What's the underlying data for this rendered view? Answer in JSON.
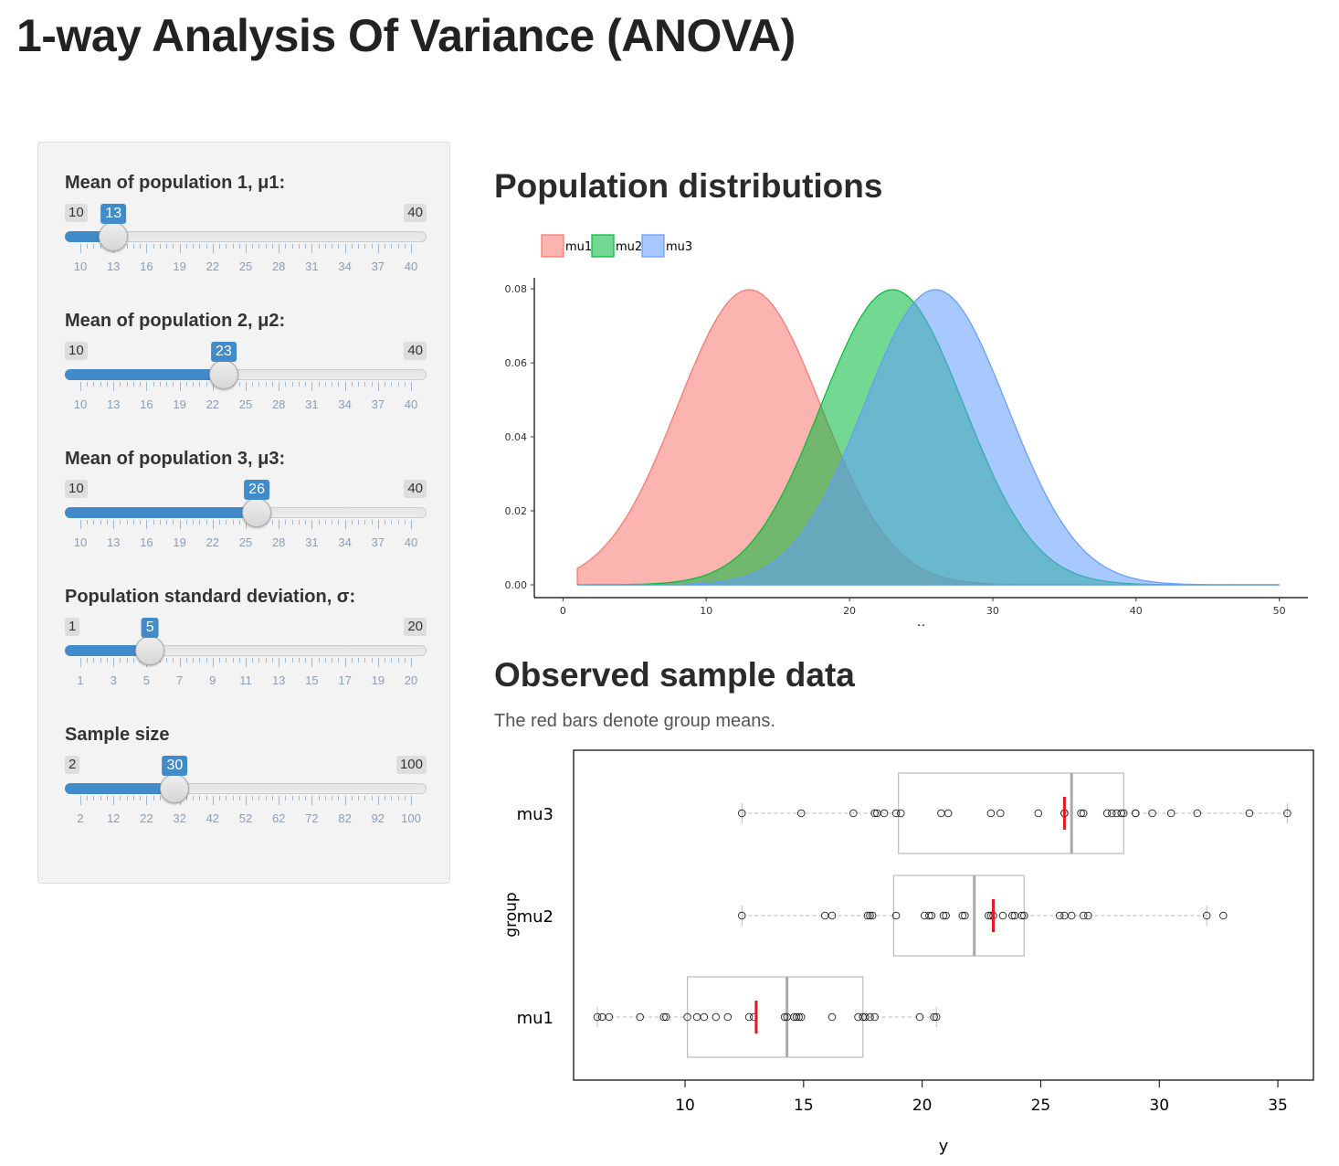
{
  "title": "1-way Analysis Of Variance (ANOVA)",
  "sliders": [
    {
      "id": "mu1",
      "label": "Mean of population 1, μ1:",
      "min": 10,
      "max": 40,
      "value": 13,
      "tick_labels": [
        "10",
        "13",
        "16",
        "19",
        "22",
        "25",
        "28",
        "31",
        "34",
        "37",
        "40"
      ]
    },
    {
      "id": "mu2",
      "label": "Mean of population 2, μ2:",
      "min": 10,
      "max": 40,
      "value": 23,
      "tick_labels": [
        "10",
        "13",
        "16",
        "19",
        "22",
        "25",
        "28",
        "31",
        "34",
        "37",
        "40"
      ]
    },
    {
      "id": "mu3",
      "label": "Mean of population 3, μ3:",
      "min": 10,
      "max": 40,
      "value": 26,
      "tick_labels": [
        "10",
        "13",
        "16",
        "19",
        "22",
        "25",
        "28",
        "31",
        "34",
        "37",
        "40"
      ]
    },
    {
      "id": "sigma",
      "label": "Population standard deviation, σ:",
      "min": 1,
      "max": 20,
      "value": 5,
      "tick_labels": [
        "1",
        "3",
        "5",
        "7",
        "9",
        "11",
        "13",
        "15",
        "17",
        "19",
        "20"
      ]
    },
    {
      "id": "n",
      "label": "Sample size",
      "min": 2,
      "max": 100,
      "value": 30,
      "tick_labels": [
        "2",
        "12",
        "22",
        "32",
        "42",
        "52",
        "62",
        "72",
        "82",
        "92",
        "100"
      ]
    }
  ],
  "distributions": {
    "heading": "Population distributions",
    "chart_data": {
      "type": "area",
      "xlabel": "x",
      "ylabel": "",
      "xlim": [
        -2,
        52
      ],
      "ylim": [
        0,
        0.082
      ],
      "x_range": [
        1,
        50
      ],
      "xticks": [
        "0",
        "10",
        "20",
        "30",
        "40",
        "50"
      ],
      "yticks": [
        "0.00",
        "0.02",
        "0.04",
        "0.06",
        "0.08"
      ],
      "legend_position": "top-left",
      "series": [
        {
          "name": "mu1",
          "mean": 13,
          "sd": 5,
          "color": "#F8766D"
        },
        {
          "name": "mu2",
          "mean": 23,
          "sd": 5,
          "color": "#00BA38"
        },
        {
          "name": "mu3",
          "mean": 26,
          "sd": 5,
          "color": "#619CFF"
        }
      ]
    }
  },
  "observed": {
    "heading": "Observed sample data",
    "note": "The red bars denote group means.",
    "chart_data": {
      "type": "box",
      "xlabel": "y",
      "ylabel": "group",
      "xlim": [
        5.3,
        36.5
      ],
      "xticks": [
        "10",
        "15",
        "20",
        "25",
        "30",
        "35"
      ],
      "groups": [
        {
          "name": "mu3",
          "mean": 26.0,
          "q1": 19.0,
          "median": 26.3,
          "q3": 28.5,
          "whisker_low": 12.4,
          "whisker_high": 35.4,
          "points": [
            12.4,
            14.9,
            17.1,
            18.0,
            18.1,
            18.4,
            18.9,
            19.1,
            20.8,
            21.1,
            22.9,
            23.3,
            24.9,
            26.0,
            26.0,
            26.7,
            26.8,
            27.8,
            28.0,
            28.2,
            28.4,
            28.5,
            29.0,
            29.0,
            29.7,
            30.5,
            31.6,
            33.8,
            35.4
          ]
        },
        {
          "name": "mu2",
          "mean": 23.0,
          "q1": 18.8,
          "median": 22.2,
          "q3": 24.3,
          "whisker_low": 12.4,
          "whisker_high": 32.0,
          "points": [
            12.4,
            15.9,
            16.2,
            17.7,
            17.8,
            17.9,
            18.9,
            20.1,
            20.3,
            20.4,
            20.9,
            21.0,
            21.7,
            21.8,
            22.8,
            22.9,
            23.0,
            23.4,
            23.8,
            23.9,
            24.2,
            24.3,
            25.8,
            26.0,
            26.3,
            26.8,
            27.0,
            32.0,
            32.7
          ]
        },
        {
          "name": "mu1",
          "mean": 13.0,
          "q1": 10.1,
          "median": 14.3,
          "q3": 17.5,
          "whisker_low": 6.3,
          "whisker_high": 20.6,
          "points": [
            6.3,
            6.5,
            6.8,
            8.1,
            9.1,
            9.2,
            10.1,
            10.5,
            10.8,
            11.3,
            11.8,
            12.7,
            12.9,
            14.2,
            14.3,
            14.6,
            14.7,
            14.8,
            14.9,
            16.2,
            17.3,
            17.5,
            17.6,
            17.8,
            18.0,
            19.9,
            20.5,
            20.6
          ]
        }
      ]
    }
  }
}
